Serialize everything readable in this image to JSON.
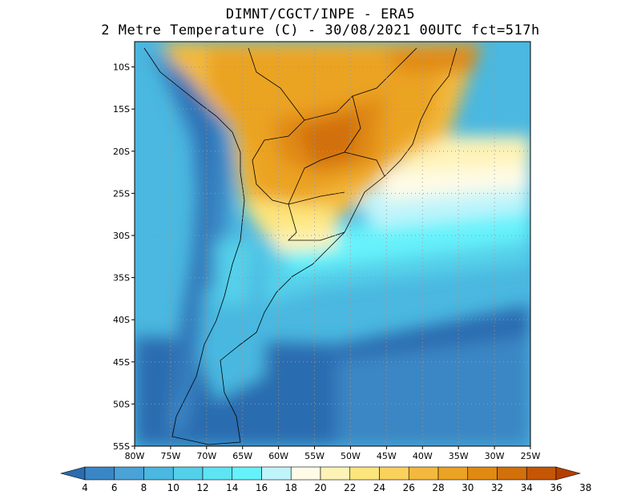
{
  "header": {
    "line1": "DIMNT/CGCT/INPE -  ERA5",
    "line2": "2 Metre Temperature (C) -  30/08/2021 00UTC fct=517h"
  },
  "map": {
    "lon_range": [
      -80,
      -25
    ],
    "lat_range": [
      -55,
      -7
    ],
    "lat_ticks": [
      {
        "value": -10,
        "label": "10S"
      },
      {
        "value": -15,
        "label": "15S"
      },
      {
        "value": -20,
        "label": "20S"
      },
      {
        "value": -25,
        "label": "25S"
      },
      {
        "value": -30,
        "label": "30S"
      },
      {
        "value": -35,
        "label": "35S"
      },
      {
        "value": -40,
        "label": "40S"
      },
      {
        "value": -45,
        "label": "45S"
      },
      {
        "value": -50,
        "label": "50S"
      },
      {
        "value": -55,
        "label": "55S"
      }
    ],
    "lon_ticks": [
      {
        "value": -80,
        "label": "80W"
      },
      {
        "value": -75,
        "label": "75W"
      },
      {
        "value": -70,
        "label": "70W"
      },
      {
        "value": -65,
        "label": "65W"
      },
      {
        "value": -60,
        "label": "60W"
      },
      {
        "value": -55,
        "label": "55W"
      },
      {
        "value": -50,
        "label": "50W"
      },
      {
        "value": -45,
        "label": "45W"
      },
      {
        "value": -40,
        "label": "40W"
      },
      {
        "value": -35,
        "label": "35W"
      },
      {
        "value": -30,
        "label": "30W"
      },
      {
        "value": -25,
        "label": "25W"
      }
    ]
  },
  "colorbar": {
    "labels": [
      "4",
      "6",
      "8",
      "10",
      "12",
      "14",
      "16",
      "18",
      "20",
      "22",
      "24",
      "26",
      "28",
      "30",
      "32",
      "34",
      "36",
      "38"
    ],
    "colors": [
      "#2b6cb0",
      "#3a86c4",
      "#4aa2d6",
      "#4ab8e0",
      "#55d0ea",
      "#5ee4f4",
      "#66f2fb",
      "#bff4fb",
      "#fffbe6",
      "#fef3b6",
      "#fde57d",
      "#f9d15c",
      "#f3b93e",
      "#eba323",
      "#e08a12",
      "#d2700c",
      "#c45606",
      "#b44000"
    ]
  }
}
